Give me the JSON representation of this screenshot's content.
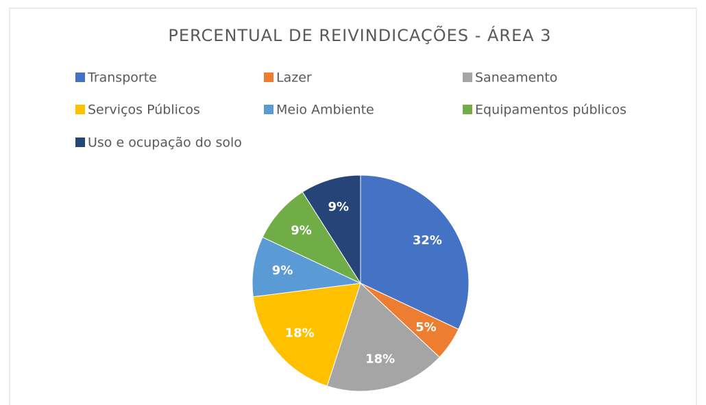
{
  "chart_data": {
    "type": "pie",
    "title": "PERCENTUAL DE REIVINDICAÇÕES - ÁREA 3",
    "categories": [
      "Transporte",
      "Lazer",
      "Saneamento",
      "Serviços Públicos",
      "Meio Ambiente",
      "Equipamentos públicos",
      "Uso e ocupação do solo"
    ],
    "values": [
      32,
      5,
      18,
      18,
      9,
      9,
      9
    ],
    "value_labels": [
      "32%",
      "5%",
      "18%",
      "18%",
      "9%",
      "9%",
      "9%"
    ],
    "colors": [
      "#4472c4",
      "#ed7d31",
      "#a5a5a5",
      "#ffc000",
      "#5b9bd5",
      "#70ad47",
      "#264478"
    ],
    "legend": "top"
  }
}
